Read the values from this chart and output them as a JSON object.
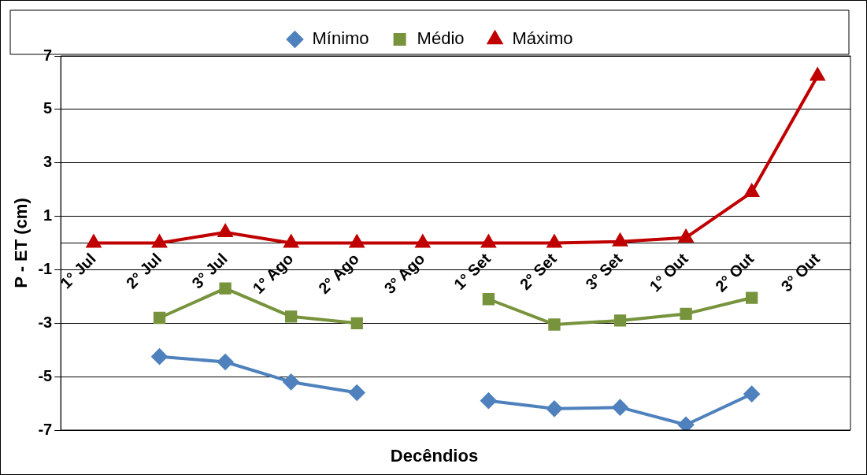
{
  "chart_data": {
    "type": "line",
    "xlabel": "Decêndios",
    "ylabel": "P - ET (cm)",
    "categories": [
      "1° Jul",
      "2° Jul",
      "3° Jul",
      "1° Ago",
      "2° Ago",
      "3° Ago",
      "1° Set",
      "2° Set",
      "3° Set",
      "1° Out",
      "2° Out",
      "3° Out"
    ],
    "series": [
      {
        "name": "Mínimo",
        "color": "#4f81bd",
        "marker": "diamond",
        "values": [
          null,
          -4.25,
          -4.45,
          -5.2,
          -5.6,
          null,
          -5.9,
          -6.2,
          -6.15,
          -6.8,
          -5.65,
          null
        ]
      },
      {
        "name": "Médio",
        "color": "#77933c",
        "marker": "square",
        "values": [
          null,
          -2.8,
          -1.7,
          -2.75,
          -3.0,
          null,
          -2.1,
          -3.05,
          -2.9,
          -2.65,
          -2.05,
          null
        ]
      },
      {
        "name": "Máximo",
        "color": "#c00000",
        "marker": "triangle",
        "values": [
          0,
          0,
          0.4,
          0,
          0,
          0,
          0,
          0,
          0.05,
          0.2,
          1.9,
          6.25
        ]
      }
    ],
    "ylim": [
      -7,
      7
    ],
    "yticks": [
      7,
      5,
      3,
      1,
      -1,
      -3,
      -5,
      -7
    ],
    "grid": "y",
    "legend": "top",
    "line_style": "solid"
  }
}
